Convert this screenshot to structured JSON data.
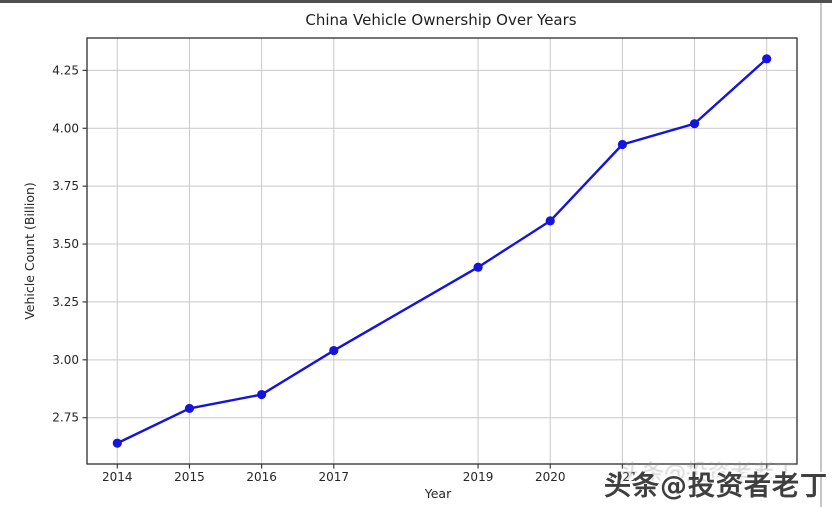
{
  "page": {
    "background": "#ffffff",
    "top_border_color": "#4f4f4f",
    "right_edge_line_color": "#c6c6c6"
  },
  "chart_data": {
    "type": "line",
    "title": "China Vehicle Ownership Over Years",
    "xlabel": "Year",
    "ylabel": "Vehicle Count (Billion)",
    "x": [
      2014,
      2015,
      2016,
      2017,
      2019,
      2020,
      2021,
      2022,
      2023
    ],
    "values": [
      2.64,
      2.79,
      2.85,
      3.04,
      3.4,
      3.6,
      3.93,
      4.02,
      4.3
    ],
    "x_tick_labels_visible": [
      "2014",
      "2015",
      "2016",
      "2017",
      "2019",
      "2020",
      "2021"
    ],
    "y_tick_labels": [
      "2.75",
      "3.00",
      "3.25",
      "3.50",
      "3.75",
      "4.00",
      "4.25"
    ],
    "xlim": [
      2013.58,
      2023.42
    ],
    "ylim": [
      2.55,
      4.39
    ],
    "grid": true,
    "legend": "none",
    "line_color": "#1414dd",
    "marker": "circle",
    "grid_color": "#c9c9c9",
    "spine_color": "#3c3c3c",
    "tick_color": "#3c3c3c",
    "text_color": "#262626"
  },
  "watermark": {
    "text": "头条@投资者老丁",
    "color": "#3f3f3f",
    "emboss_color": "#ffffff",
    "ghost_color": "#8d8d8d"
  }
}
